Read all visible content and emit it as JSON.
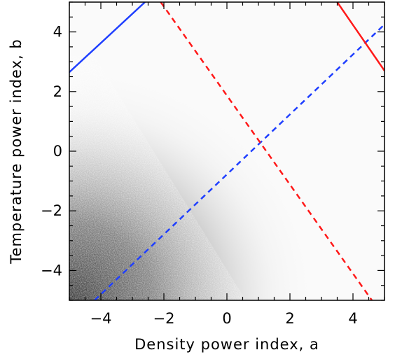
{
  "chart_data": {
    "type": "scatter",
    "title": "",
    "xlabel": "Density power index, a",
    "ylabel": "Temperature power index, b",
    "xlim": [
      -5,
      5
    ],
    "ylim": [
      -5,
      5
    ],
    "x_ticks": [
      -4,
      -2,
      0,
      2,
      4
    ],
    "y_ticks": [
      -4,
      -2,
      0,
      2,
      4
    ],
    "x_tick_labels": [
      "−4",
      "−2",
      "0",
      "2",
      "4"
    ],
    "y_tick_labels": [
      "−4",
      "−2",
      "0",
      "2",
      "4"
    ],
    "grid": false,
    "legend": "none",
    "background": "grayscale point density, darkest toward lower-left (a ≈ −5, b ≈ −5), fading toward the line a + b ≈ −3",
    "lines": [
      {
        "color": "#1f3fff",
        "style": "solid",
        "points": [
          [
            -5.0,
            2.65
          ],
          [
            -2.6,
            5.0
          ]
        ]
      },
      {
        "color": "#1f3fff",
        "style": "dashed",
        "points": [
          [
            -4.2,
            -5.0
          ],
          [
            5.0,
            4.25
          ]
        ]
      },
      {
        "color": "#ff1a1a",
        "style": "solid",
        "points": [
          [
            3.5,
            5.0
          ],
          [
            5.0,
            2.7
          ]
        ]
      },
      {
        "color": "#ff1a1a",
        "style": "dashed",
        "points": [
          [
            -2.1,
            5.0
          ],
          [
            4.6,
            -5.0
          ]
        ]
      }
    ]
  }
}
